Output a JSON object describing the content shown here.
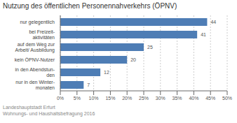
{
  "chart_data": {
    "type": "bar",
    "orientation": "horizontal",
    "title": "Nutzung des öffentlichen Personennahverkehrs (ÖPNV)",
    "categories": [
      "nur in den Winter-\nmonaten",
      "in den Abendstun-\nden",
      "kein ÖPNV-Nutzer",
      "auf dem Weg zur\nArbeit/ Ausbildung",
      "bei Freizeit-\naktivitäten",
      "nur gelegentlich"
    ],
    "values": [
      7,
      12,
      20,
      25,
      41,
      44
    ],
    "color": "#4e7db5",
    "xlim": [
      0,
      50
    ],
    "xticks": [
      {
        "value": 0,
        "label": "0%"
      },
      {
        "value": 5,
        "label": "5%"
      },
      {
        "value": 10,
        "label": "10%"
      },
      {
        "value": 15,
        "label": "15%"
      },
      {
        "value": 20,
        "label": "20%"
      },
      {
        "value": 25,
        "label": "25%"
      },
      {
        "value": 30,
        "label": "30%"
      },
      {
        "value": 35,
        "label": "35%"
      },
      {
        "value": 40,
        "label": "40%"
      },
      {
        "value": 45,
        "label": "45%"
      },
      {
        "value": 50,
        "label": "50%"
      }
    ],
    "grid": true,
    "data_labels": true,
    "source": "Landeshauptstadt Erfurt\nWohnungs- und Haushaltsbefragung 2016"
  }
}
